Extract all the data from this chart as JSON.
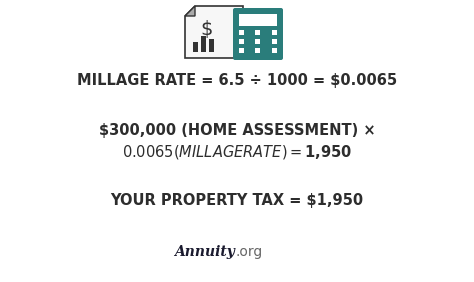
{
  "bg_color": "#ffffff",
  "line1": "MILLAGE RATE = 6.5 ÷ 1000 = $0.0065",
  "line2a": "$300,000 (HOME ASSESSMENT) ×",
  "line2b": "$0.0065 (MILLAGE RATE) = $1,950",
  "line3": "YOUR PROPERTY TAX = $1,950",
  "brand_bold": "Annuity",
  "brand_light": ".org",
  "text_color": "#2d2d2d",
  "brand_bold_color": "#1a1a2e",
  "brand_light_color": "#666666",
  "font_size_main": 10.5,
  "font_size_brand": 10,
  "icon_color_teal": "#2a7d7b",
  "icon_color_dark": "#333333",
  "icon_color_gray": "#aaaaaa"
}
